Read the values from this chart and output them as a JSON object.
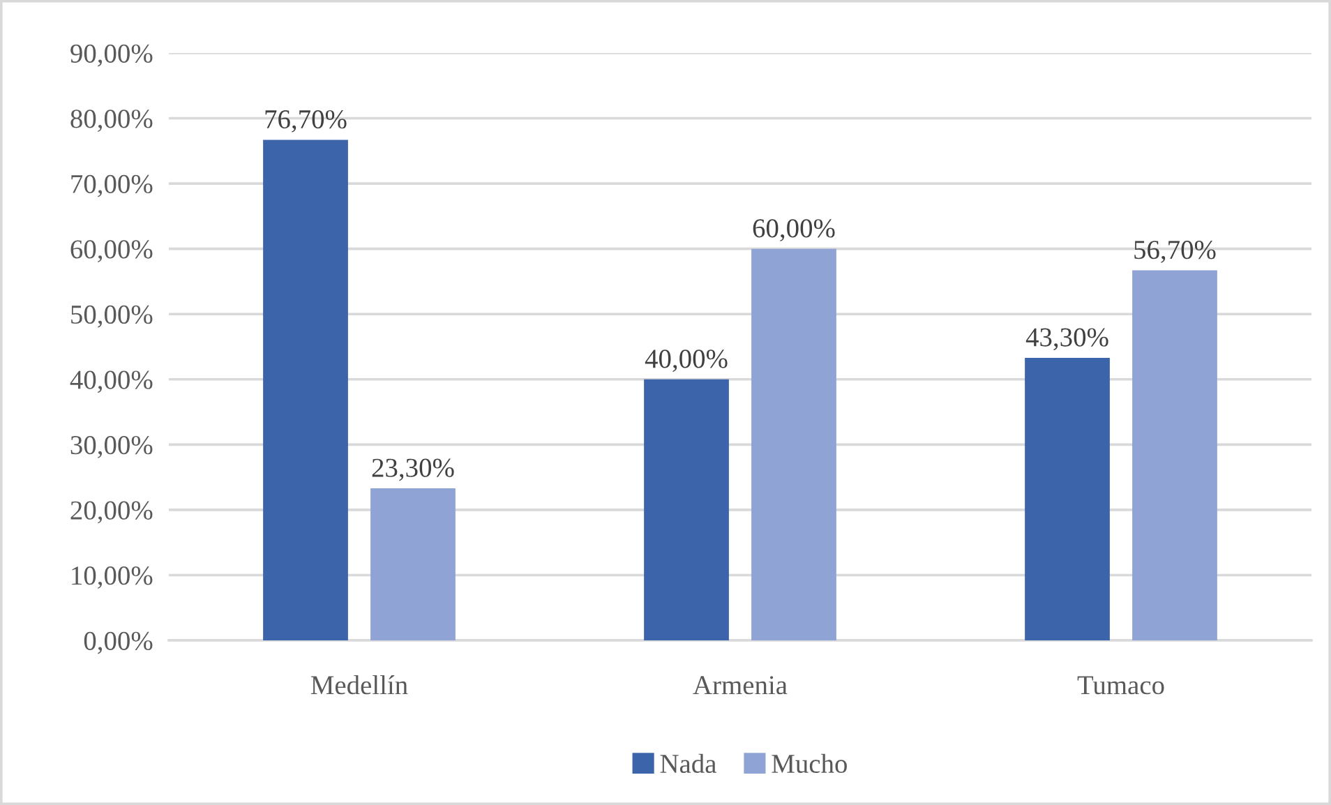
{
  "chart_data": {
    "type": "bar",
    "categories": [
      "Medellín",
      "Armenia",
      "Tumaco"
    ],
    "series": [
      {
        "name": "Nada",
        "color": "#3c64ab",
        "values": [
          76.7,
          40,
          43.3
        ],
        "value_labels": [
          "76,70%",
          "40,00%",
          "43,30%"
        ]
      },
      {
        "name": "Mucho",
        "color": "#8fa4d4",
        "values": [
          23.3,
          60,
          56.7
        ],
        "value_labels": [
          "23,30%",
          "60,00%",
          "56,70%"
        ]
      }
    ],
    "ylim": [
      0,
      90
    ],
    "yticks": [
      {
        "value": 0,
        "label": "0,00%"
      },
      {
        "value": 10,
        "label": "10,00%"
      },
      {
        "value": 20,
        "label": "20,00%"
      },
      {
        "value": 30,
        "label": "30,00%"
      },
      {
        "value": 40,
        "label": "40,00%"
      },
      {
        "value": 50,
        "label": "50,00%"
      },
      {
        "value": 60,
        "label": "60,00%"
      },
      {
        "value": 70,
        "label": "70,00%"
      },
      {
        "value": 80,
        "label": "80,00%"
      },
      {
        "value": 90,
        "label": "90,00%"
      }
    ],
    "grid": "y",
    "legend": "bottom"
  }
}
